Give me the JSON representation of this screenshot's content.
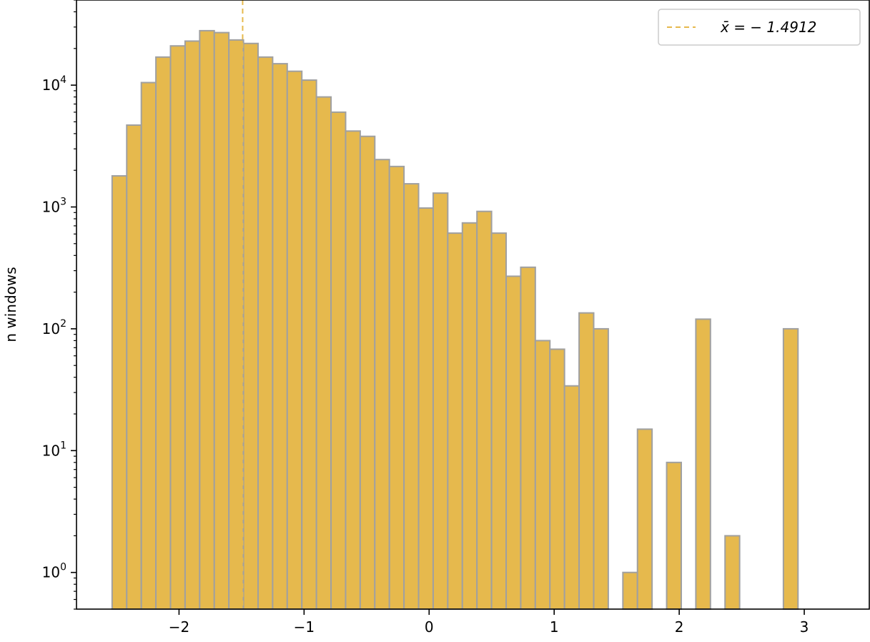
{
  "chart_data": {
    "type": "bar",
    "subtype": "histogram",
    "yscale": "log",
    "title": "",
    "xlabel": "",
    "ylabel": "n windows",
    "xlim": [
      -2.82,
      3.52
    ],
    "ylim": [
      0.5,
      50000
    ],
    "xticks": [
      {
        "value": -2,
        "label": "−2"
      },
      {
        "value": -1,
        "label": "−1"
      },
      {
        "value": 0,
        "label": "0"
      },
      {
        "value": 1,
        "label": "1"
      },
      {
        "value": 2,
        "label": "2"
      },
      {
        "value": 3,
        "label": "3"
      }
    ],
    "yticks": [
      {
        "value": 1,
        "base": "10",
        "exp": "0"
      },
      {
        "value": 10,
        "base": "10",
        "exp": "1"
      },
      {
        "value": 100,
        "base": "10",
        "exp": "2"
      },
      {
        "value": 1000,
        "base": "10",
        "exp": "3"
      },
      {
        "value": 10000,
        "base": "10",
        "exp": "4"
      }
    ],
    "bin_start": -2.535,
    "bin_width": 0.1167,
    "bar_color": "#e6b94d",
    "edge_color": "#a0a0a0",
    "counts": [
      1800,
      4700,
      10500,
      17000,
      21000,
      23000,
      28000,
      27000,
      23500,
      22000,
      17000,
      15000,
      13000,
      11000,
      8000,
      6000,
      4200,
      3800,
      2450,
      2150,
      1550,
      980,
      1300,
      610,
      740,
      920,
      610,
      270,
      320,
      80,
      68,
      34,
      135,
      100,
      0,
      1,
      15,
      0,
      8,
      0,
      120,
      0,
      2,
      0,
      0,
      0,
      100
    ],
    "mean_line": {
      "x": -1.4912,
      "color": "#e6b94d",
      "style": "dashed",
      "label": "x̄ = − 1.4912"
    },
    "grid": false,
    "legend": {
      "placement": "top-right",
      "entries": [
        {
          "label": "x̄ = − 1.4912",
          "style": "dashed",
          "color": "#e6b94d"
        }
      ]
    }
  }
}
